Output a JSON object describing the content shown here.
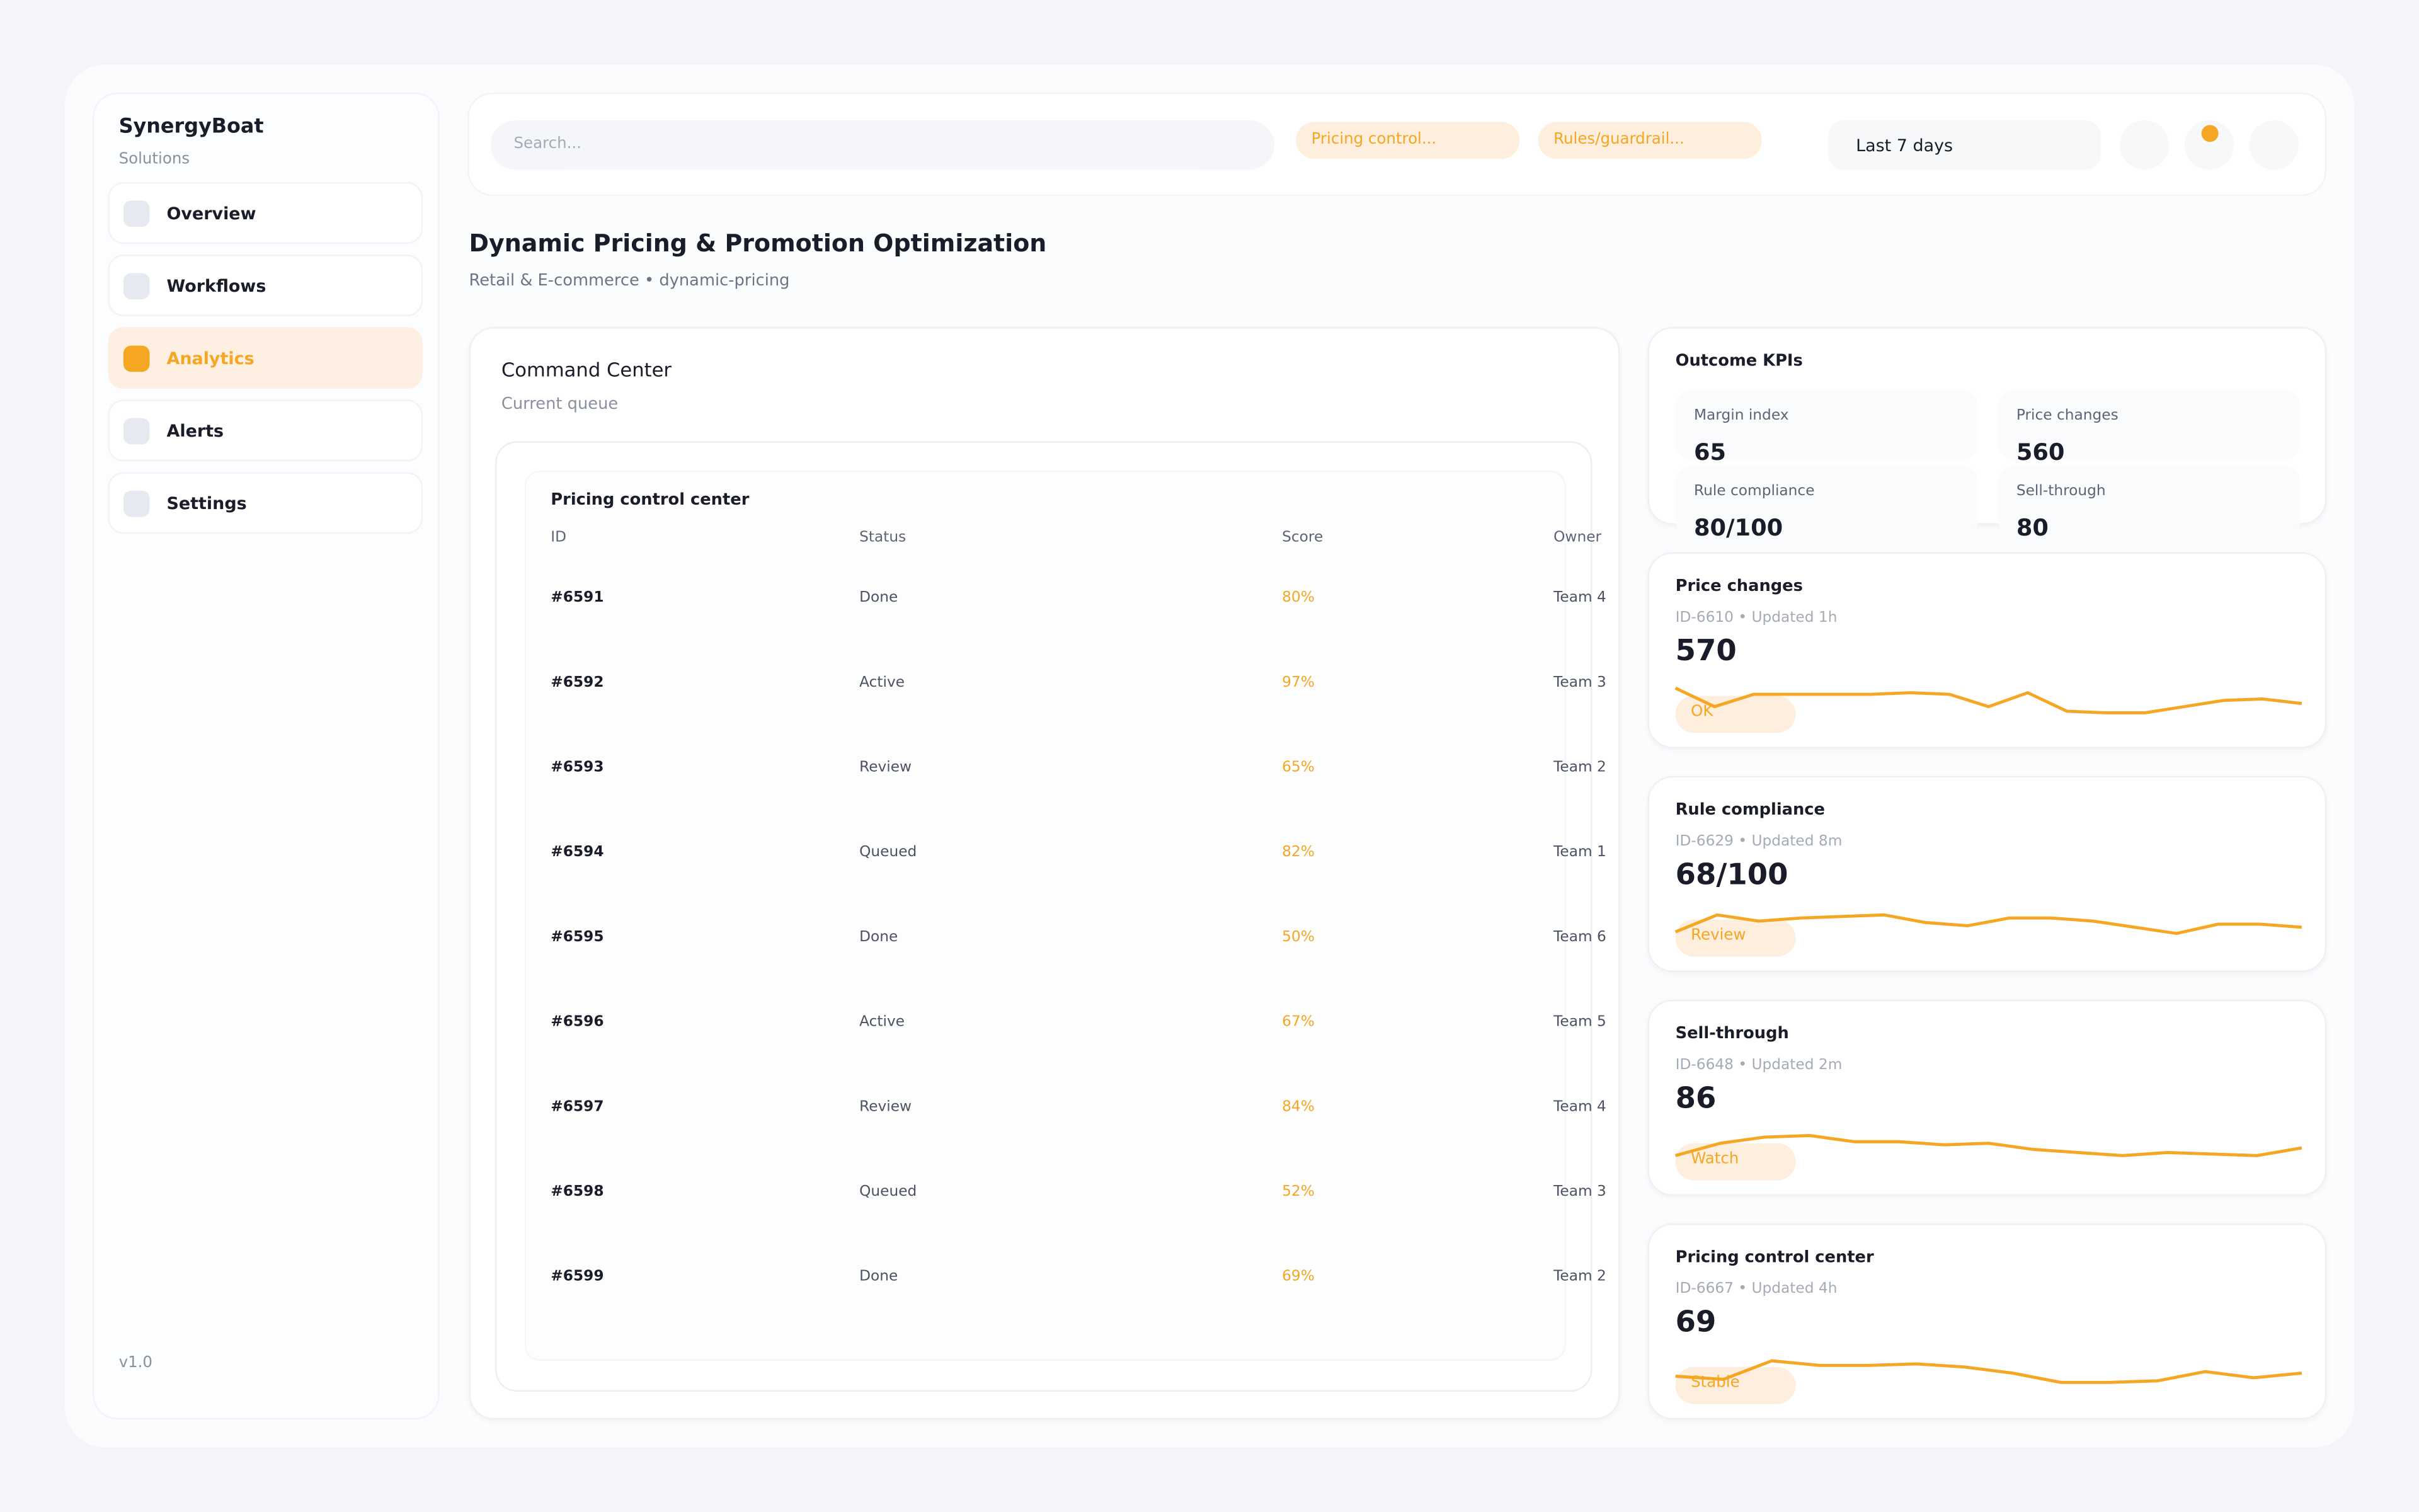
{
  "sidebar": {
    "brand": "SynergyBoat",
    "subtitle": "Solutions",
    "nav": [
      {
        "label": "Overview",
        "active": false
      },
      {
        "label": "Workflows",
        "active": false
      },
      {
        "label": "Analytics",
        "active": true
      },
      {
        "label": "Alerts",
        "active": false
      },
      {
        "label": "Settings",
        "active": false
      }
    ],
    "version": "v1.0"
  },
  "topbar": {
    "search_placeholder": "Search...",
    "chips": [
      "Pricing control...",
      "Rules/guardrail..."
    ],
    "date_range": "Last 7 days"
  },
  "header": {
    "title": "Dynamic Pricing & Promotion Optimization",
    "subtitle": "Retail & E-commerce • dynamic-pricing"
  },
  "command_center": {
    "title": "Command Center",
    "subtitle": "Current queue",
    "table": {
      "title": "Pricing control center",
      "columns": [
        "ID",
        "Status",
        "Score",
        "Owner"
      ],
      "rows": [
        [
          "#6591",
          "Done",
          "80%",
          "Team 4"
        ],
        [
          "#6592",
          "Active",
          "97%",
          "Team 3"
        ],
        [
          "#6593",
          "Review",
          "65%",
          "Team 2"
        ],
        [
          "#6594",
          "Queued",
          "82%",
          "Team 1"
        ],
        [
          "#6595",
          "Done",
          "50%",
          "Team 6"
        ],
        [
          "#6596",
          "Active",
          "67%",
          "Team 5"
        ],
        [
          "#6597",
          "Review",
          "84%",
          "Team 4"
        ],
        [
          "#6598",
          "Queued",
          "52%",
          "Team 3"
        ],
        [
          "#6599",
          "Done",
          "69%",
          "Team 2"
        ]
      ]
    }
  },
  "kpis": {
    "title": "Outcome KPIs",
    "tiles": [
      {
        "label": "Margin index",
        "value": 65
      },
      {
        "label": "Price changes",
        "value": 560
      },
      {
        "label": "Rule compliance",
        "value": "80/100"
      },
      {
        "label": "Sell-through",
        "value": 80
      }
    ]
  },
  "cards": [
    {
      "title": "Price changes",
      "meta": "ID-6610 • Updated 1h",
      "value": 570,
      "badge": "OK",
      "trend": [
        25,
        13,
        21,
        21,
        21,
        21,
        22,
        21,
        13,
        22,
        10,
        9,
        9,
        13,
        17,
        18,
        15
      ]
    },
    {
      "title": "Rule compliance",
      "meta": "ID-6629 • Updated 8m",
      "value": "68/100",
      "badge": "Review",
      "trend": [
        12,
        23,
        19,
        21,
        22,
        23,
        18,
        16,
        21,
        21,
        19,
        15,
        11,
        17,
        17,
        15
      ]
    },
    {
      "title": "Sell-through",
      "meta": "ID-6648 • Updated 2m",
      "value": 86,
      "badge": "Watch",
      "trend": [
        12,
        20,
        24,
        25,
        21,
        21,
        19,
        20,
        16,
        14,
        12,
        14,
        13,
        12,
        17
      ]
    },
    {
      "title": "Pricing control center",
      "meta": "ID-6667 • Updated 4h",
      "value": 69,
      "badge": "Stable",
      "trend": [
        14,
        12,
        24,
        21,
        21,
        22,
        20,
        16,
        10,
        10,
        11,
        17,
        13,
        16
      ]
    }
  ]
}
